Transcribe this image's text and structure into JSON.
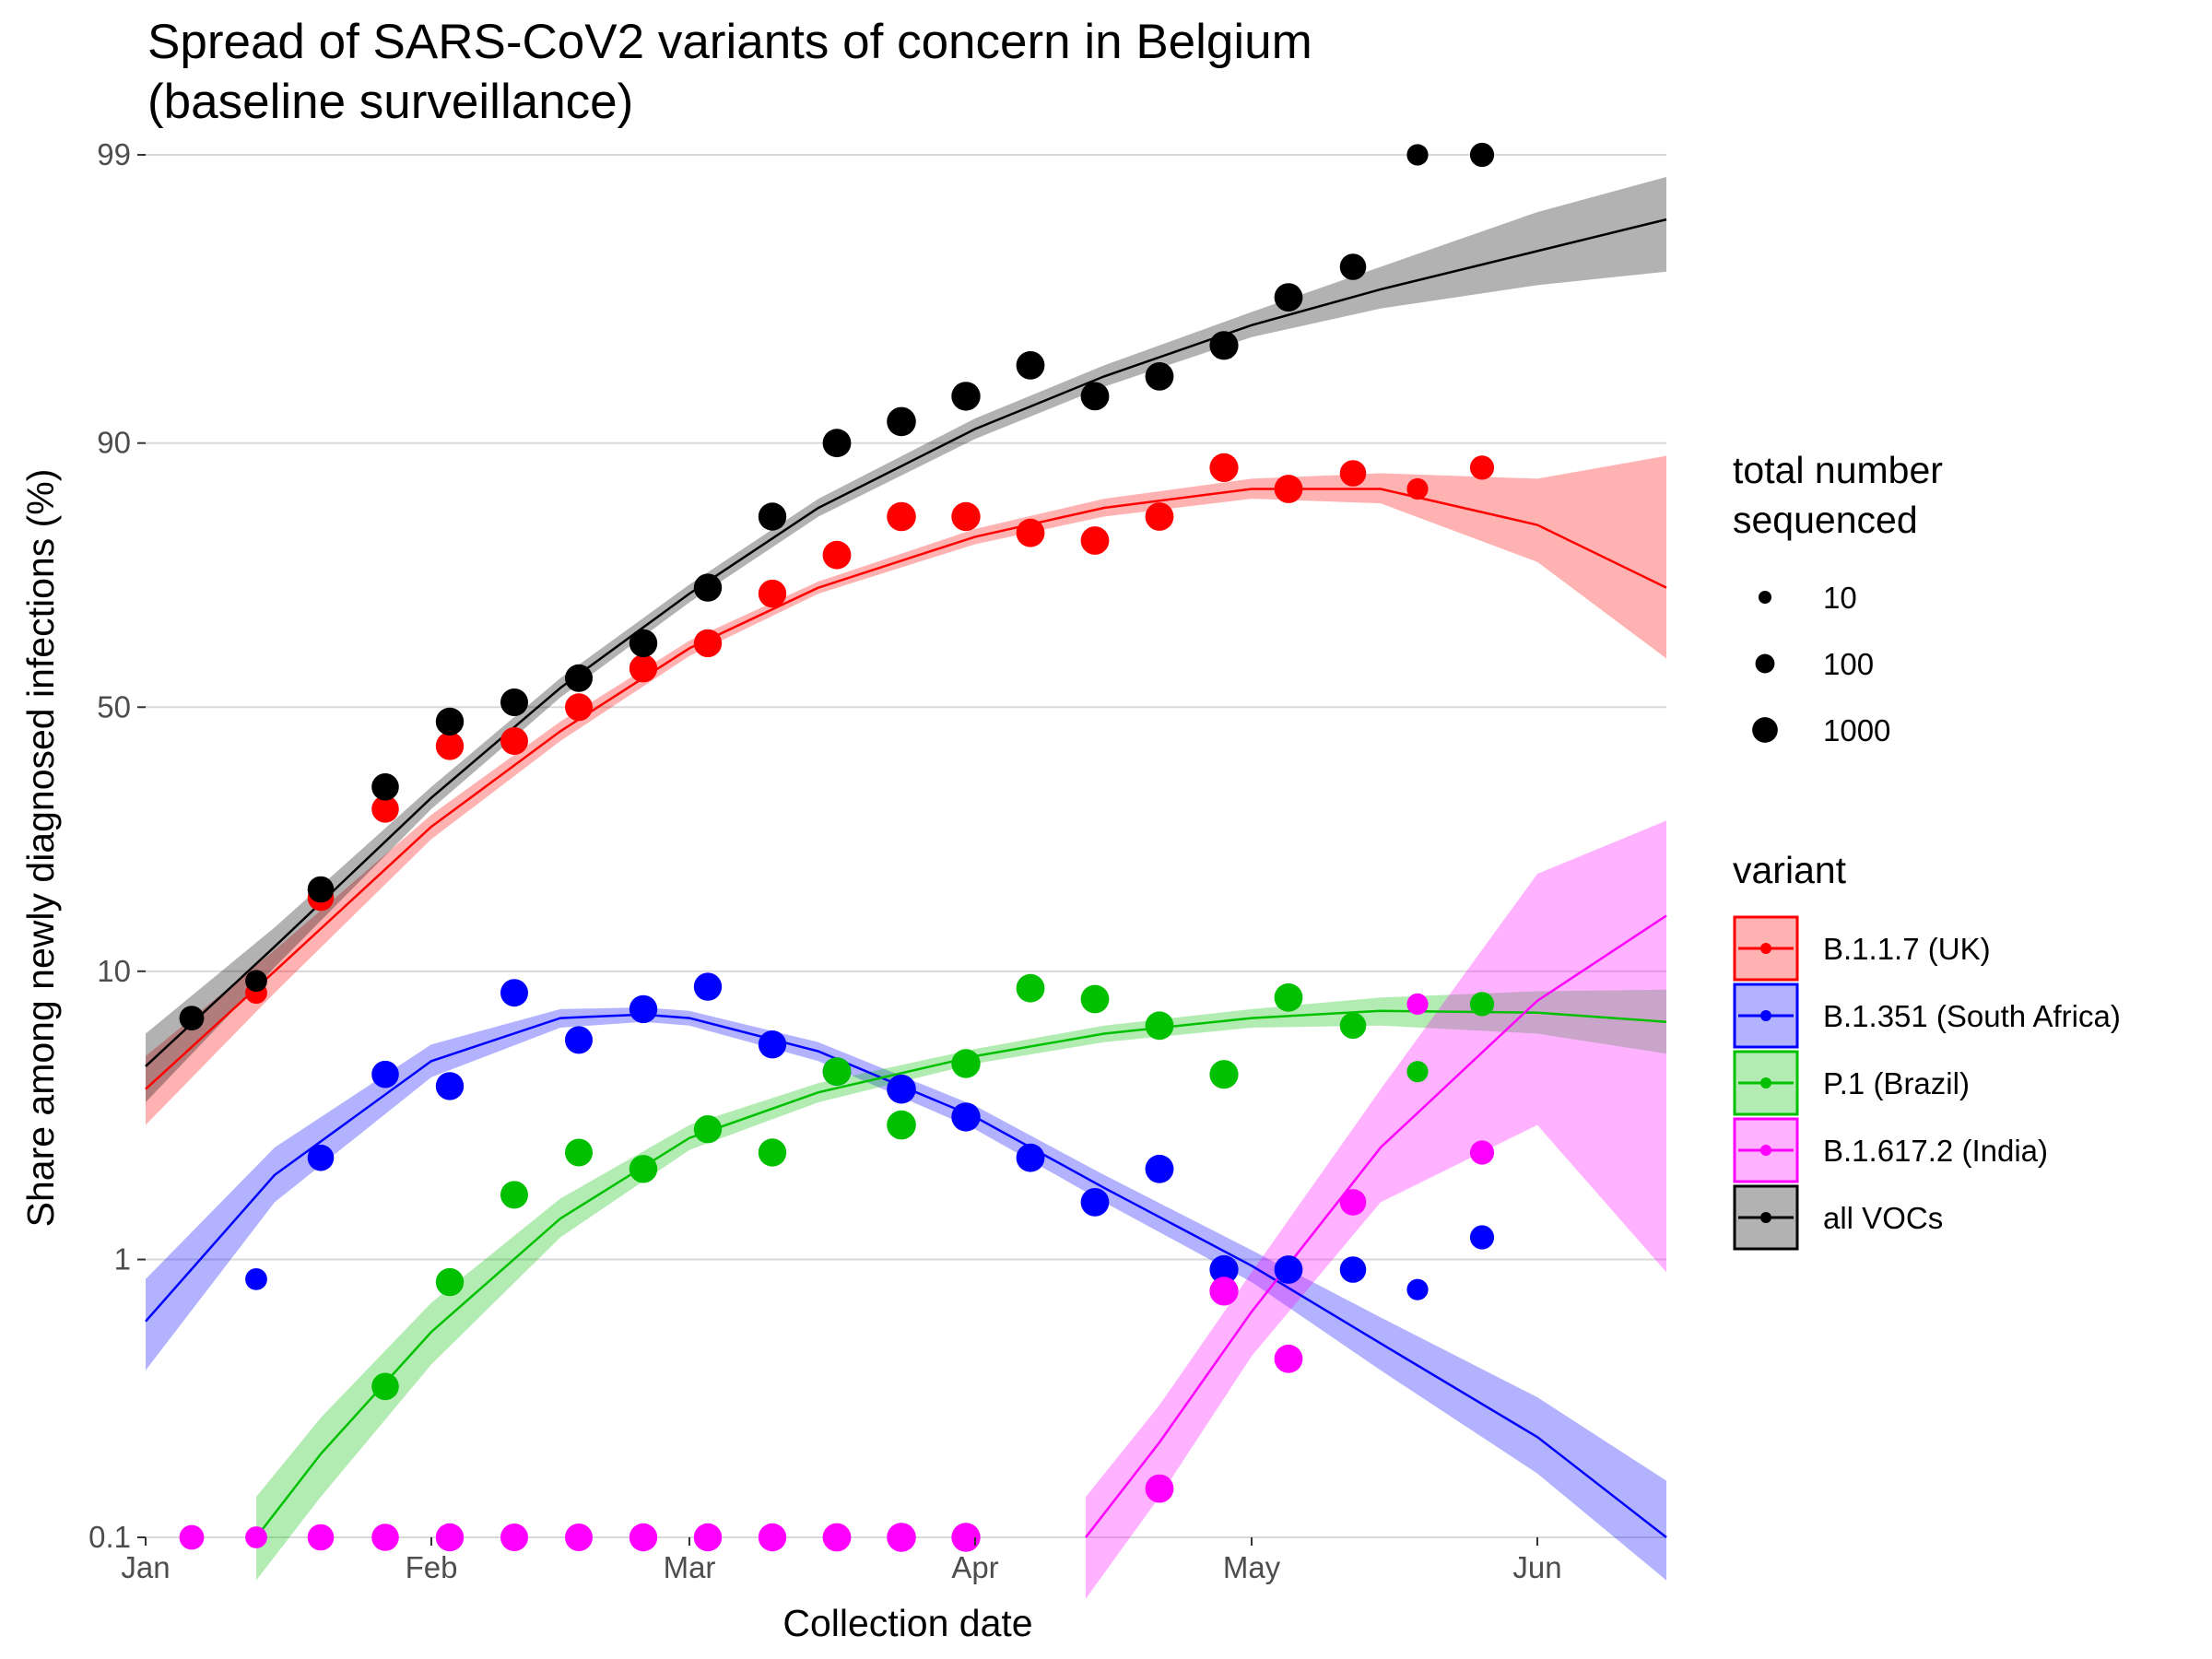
{
  "chart_data": {
    "type": "scatter",
    "title_line1": "Spread of SARS-CoV2 variants of concern in Belgium",
    "title_line2": "(baseline surveillance)",
    "xlabel": "Collection date",
    "ylabel": "Share among newly diagnosed infections (%)",
    "y_scale": "logit",
    "ylim": [
      0.1,
      99
    ],
    "y_ticks": [
      0.1,
      1,
      10,
      50,
      90,
      99
    ],
    "y_tick_labels": [
      "0.1",
      "1",
      "10",
      "50",
      "90",
      "99"
    ],
    "xlim": [
      "2021-01-01",
      "2021-06-15"
    ],
    "x_ticks": [
      "2021-01-01",
      "2021-02-01",
      "2021-03-01",
      "2021-04-01",
      "2021-05-01",
      "2021-06-01"
    ],
    "x_tick_labels": [
      "Jan",
      "Feb",
      "Mar",
      "Apr",
      "May",
      "Jun"
    ],
    "grid": true,
    "size_legend": {
      "title_line1": "total number",
      "title_line2": "sequenced",
      "entries": [
        {
          "label": "10",
          "n": 10
        },
        {
          "label": "100",
          "n": 100
        },
        {
          "label": "1000",
          "n": 1000
        }
      ]
    },
    "variant_legend_title": "variant",
    "series": [
      {
        "name": "B.1.1.7 (UK)",
        "color": "#ff0000",
        "points": [
          {
            "date": "2021-01-13",
            "y": 8.5,
            "n": 120
          },
          {
            "date": "2021-01-20",
            "y": 17,
            "n": 500
          },
          {
            "date": "2021-01-27",
            "y": 30,
            "n": 700
          },
          {
            "date": "2021-02-03",
            "y": 42,
            "n": 900
          },
          {
            "date": "2021-02-10",
            "y": 43,
            "n": 800
          },
          {
            "date": "2021-02-17",
            "y": 50,
            "n": 800
          },
          {
            "date": "2021-02-24",
            "y": 58,
            "n": 900
          },
          {
            "date": "2021-03-03",
            "y": 63,
            "n": 900
          },
          {
            "date": "2021-03-10",
            "y": 72,
            "n": 900
          },
          {
            "date": "2021-03-17",
            "y": 78,
            "n": 1000
          },
          {
            "date": "2021-03-24",
            "y": 83,
            "n": 1300
          },
          {
            "date": "2021-03-31",
            "y": 83,
            "n": 1200
          },
          {
            "date": "2021-04-07",
            "y": 81,
            "n": 1000
          },
          {
            "date": "2021-04-14",
            "y": 80,
            "n": 1000
          },
          {
            "date": "2021-04-21",
            "y": 83,
            "n": 1000
          },
          {
            "date": "2021-04-28",
            "y": 88,
            "n": 1100
          },
          {
            "date": "2021-05-05",
            "y": 86,
            "n": 1000
          },
          {
            "date": "2021-05-12",
            "y": 87.5,
            "n": 500
          },
          {
            "date": "2021-05-19",
            "y": 86,
            "n": 100
          },
          {
            "date": "2021-05-26",
            "y": 88,
            "n": 250
          }
        ],
        "fit": [
          {
            "date": "2021-01-01",
            "y": 4.0,
            "lo": 3.0,
            "hi": 5.2
          },
          {
            "date": "2021-01-15",
            "y": 10,
            "lo": 8.5,
            "hi": 11.7
          },
          {
            "date": "2021-02-01",
            "y": 27,
            "lo": 25,
            "hi": 29
          },
          {
            "date": "2021-02-15",
            "y": 45,
            "lo": 43,
            "hi": 47
          },
          {
            "date": "2021-03-01",
            "y": 62,
            "lo": 60.5,
            "hi": 63.5
          },
          {
            "date": "2021-03-15",
            "y": 73,
            "lo": 72,
            "hi": 74
          },
          {
            "date": "2021-04-01",
            "y": 80.5,
            "lo": 79.5,
            "hi": 81.5
          },
          {
            "date": "2021-04-15",
            "y": 84,
            "lo": 83,
            "hi": 85
          },
          {
            "date": "2021-05-01",
            "y": 86,
            "lo": 85,
            "hi": 87
          },
          {
            "date": "2021-05-15",
            "y": 86,
            "lo": 84.5,
            "hi": 87.5
          },
          {
            "date": "2021-06-01",
            "y": 82,
            "lo": 77,
            "hi": 87
          },
          {
            "date": "2021-06-15",
            "y": 73,
            "lo": 60,
            "hi": 89
          }
        ]
      },
      {
        "name": "B.1.351 (South Africa)",
        "color": "#0000ff",
        "points": [
          {
            "date": "2021-01-13",
            "y": 0.85,
            "n": 120
          },
          {
            "date": "2021-01-20",
            "y": 2.3,
            "n": 500
          },
          {
            "date": "2021-01-27",
            "y": 4.5,
            "n": 700
          },
          {
            "date": "2021-02-03",
            "y": 4.1,
            "n": 900
          },
          {
            "date": "2021-02-10",
            "y": 8.5,
            "n": 800
          },
          {
            "date": "2021-02-17",
            "y": 5.9,
            "n": 800
          },
          {
            "date": "2021-02-24",
            "y": 7.5,
            "n": 900
          },
          {
            "date": "2021-03-03",
            "y": 8.9,
            "n": 900
          },
          {
            "date": "2021-03-10",
            "y": 5.7,
            "n": 900
          },
          {
            "date": "2021-03-17",
            "y": 4.6,
            "n": 1000
          },
          {
            "date": "2021-03-24",
            "y": 4.0,
            "n": 1300
          },
          {
            "date": "2021-03-31",
            "y": 3.2,
            "n": 1200
          },
          {
            "date": "2021-04-07",
            "y": 2.3,
            "n": 1000
          },
          {
            "date": "2021-04-14",
            "y": 1.6,
            "n": 1000
          },
          {
            "date": "2021-04-21",
            "y": 2.1,
            "n": 1000
          },
          {
            "date": "2021-04-28",
            "y": 0.92,
            "n": 1100
          },
          {
            "date": "2021-05-05",
            "y": 0.92,
            "n": 1000
          },
          {
            "date": "2021-05-12",
            "y": 0.92,
            "n": 500
          },
          {
            "date": "2021-05-19",
            "y": 0.78,
            "n": 100
          },
          {
            "date": "2021-05-26",
            "y": 1.2,
            "n": 250
          }
        ],
        "fit": [
          {
            "date": "2021-01-01",
            "y": 0.6,
            "lo": 0.4,
            "hi": 0.85
          },
          {
            "date": "2021-01-15",
            "y": 2.0,
            "lo": 1.6,
            "hi": 2.5
          },
          {
            "date": "2021-02-01",
            "y": 5.0,
            "lo": 4.4,
            "hi": 5.7
          },
          {
            "date": "2021-02-15",
            "y": 7.0,
            "lo": 6.5,
            "hi": 7.5
          },
          {
            "date": "2021-02-24",
            "y": 7.2,
            "lo": 6.8,
            "hi": 7.6
          },
          {
            "date": "2021-03-01",
            "y": 7.0,
            "lo": 6.6,
            "hi": 7.4
          },
          {
            "date": "2021-03-15",
            "y": 5.4,
            "lo": 5.0,
            "hi": 5.8
          },
          {
            "date": "2021-04-01",
            "y": 3.2,
            "lo": 2.9,
            "hi": 3.5
          },
          {
            "date": "2021-04-15",
            "y": 1.8,
            "lo": 1.6,
            "hi": 2.0
          },
          {
            "date": "2021-05-01",
            "y": 0.95,
            "lo": 0.83,
            "hi": 1.08
          },
          {
            "date": "2021-05-15",
            "y": 0.5,
            "lo": 0.4,
            "hi": 0.62
          },
          {
            "date": "2021-06-01",
            "y": 0.23,
            "lo": 0.17,
            "hi": 0.32
          },
          {
            "date": "2021-06-15",
            "y": 0.1,
            "lo": 0.07,
            "hi": 0.16
          }
        ]
      },
      {
        "name": "P.1 (Brazil)",
        "color": "#00c000",
        "points": [
          {
            "date": "2021-01-27",
            "y": 0.35,
            "n": 700
          },
          {
            "date": "2021-02-03",
            "y": 0.83,
            "n": 900
          },
          {
            "date": "2021-02-10",
            "y": 1.7,
            "n": 800
          },
          {
            "date": "2021-02-17",
            "y": 2.4,
            "n": 800
          },
          {
            "date": "2021-02-24",
            "y": 2.1,
            "n": 900
          },
          {
            "date": "2021-03-03",
            "y": 2.9,
            "n": 900
          },
          {
            "date": "2021-03-10",
            "y": 2.4,
            "n": 900
          },
          {
            "date": "2021-03-17",
            "y": 4.6,
            "n": 1000
          },
          {
            "date": "2021-03-24",
            "y": 3.0,
            "n": 1300
          },
          {
            "date": "2021-03-31",
            "y": 4.9,
            "n": 1200
          },
          {
            "date": "2021-04-07",
            "y": 8.8,
            "n": 1000
          },
          {
            "date": "2021-04-14",
            "y": 8.1,
            "n": 1000
          },
          {
            "date": "2021-04-21",
            "y": 6.6,
            "n": 1000
          },
          {
            "date": "2021-04-28",
            "y": 4.5,
            "n": 1100
          },
          {
            "date": "2021-05-05",
            "y": 8.2,
            "n": 1000
          },
          {
            "date": "2021-05-12",
            "y": 6.6,
            "n": 500
          },
          {
            "date": "2021-05-19",
            "y": 4.6,
            "n": 100
          },
          {
            "date": "2021-05-26",
            "y": 7.8,
            "n": 250
          }
        ],
        "fit": [
          {
            "date": "2021-01-13",
            "y": 0.1,
            "lo": 0.07,
            "hi": 0.14
          },
          {
            "date": "2021-01-20",
            "y": 0.2,
            "lo": 0.14,
            "hi": 0.27
          },
          {
            "date": "2021-02-01",
            "y": 0.55,
            "lo": 0.42,
            "hi": 0.7
          },
          {
            "date": "2021-02-15",
            "y": 1.4,
            "lo": 1.2,
            "hi": 1.65
          },
          {
            "date": "2021-03-01",
            "y": 2.7,
            "lo": 2.45,
            "hi": 3.0
          },
          {
            "date": "2021-03-15",
            "y": 3.9,
            "lo": 3.6,
            "hi": 4.2
          },
          {
            "date": "2021-04-01",
            "y": 5.2,
            "lo": 4.9,
            "hi": 5.5
          },
          {
            "date": "2021-04-15",
            "y": 6.2,
            "lo": 5.8,
            "hi": 6.6
          },
          {
            "date": "2021-05-01",
            "y": 7.0,
            "lo": 6.5,
            "hi": 7.5
          },
          {
            "date": "2021-05-15",
            "y": 7.4,
            "lo": 6.6,
            "hi": 8.2
          },
          {
            "date": "2021-06-01",
            "y": 7.3,
            "lo": 6.2,
            "hi": 8.6
          },
          {
            "date": "2021-06-15",
            "y": 6.8,
            "lo": 5.3,
            "hi": 8.7
          }
        ]
      },
      {
        "name": "B.1.617.2 (India)",
        "color": "#ff00ff",
        "points": [
          {
            "date": "2021-01-06",
            "y": 0.1,
            "n": 300
          },
          {
            "date": "2021-01-13",
            "y": 0.1,
            "n": 120
          },
          {
            "date": "2021-01-20",
            "y": 0.1,
            "n": 500
          },
          {
            "date": "2021-01-27",
            "y": 0.1,
            "n": 700
          },
          {
            "date": "2021-02-03",
            "y": 0.1,
            "n": 900
          },
          {
            "date": "2021-02-10",
            "y": 0.1,
            "n": 800
          },
          {
            "date": "2021-02-17",
            "y": 0.1,
            "n": 800
          },
          {
            "date": "2021-02-24",
            "y": 0.1,
            "n": 900
          },
          {
            "date": "2021-03-03",
            "y": 0.1,
            "n": 900
          },
          {
            "date": "2021-03-10",
            "y": 0.1,
            "n": 900
          },
          {
            "date": "2021-03-17",
            "y": 0.1,
            "n": 1000
          },
          {
            "date": "2021-03-24",
            "y": 0.1,
            "n": 1300
          },
          {
            "date": "2021-03-31",
            "y": 0.1,
            "n": 1200
          },
          {
            "date": "2021-04-21",
            "y": 0.15,
            "n": 1000
          },
          {
            "date": "2021-04-28",
            "y": 0.77,
            "n": 1100
          },
          {
            "date": "2021-05-05",
            "y": 0.44,
            "n": 1000
          },
          {
            "date": "2021-05-12",
            "y": 1.6,
            "n": 500
          },
          {
            "date": "2021-05-19",
            "y": 7.8,
            "n": 100
          },
          {
            "date": "2021-05-26",
            "y": 2.4,
            "n": 250
          }
        ],
        "fit": [
          {
            "date": "2021-04-13",
            "y": 0.1,
            "lo": 0.06,
            "hi": 0.14
          },
          {
            "date": "2021-04-21",
            "y": 0.22,
            "lo": 0.14,
            "hi": 0.3
          },
          {
            "date": "2021-05-01",
            "y": 0.65,
            "lo": 0.45,
            "hi": 0.9
          },
          {
            "date": "2021-05-15",
            "y": 2.5,
            "lo": 1.6,
            "hi": 4.0
          },
          {
            "date": "2021-06-01",
            "y": 8.0,
            "lo": 3.0,
            "hi": 20
          },
          {
            "date": "2021-06-15",
            "y": 15,
            "lo": 0.9,
            "hi": 28
          }
        ]
      },
      {
        "name": "all VOCs",
        "color": "#000000",
        "points": [
          {
            "date": "2021-01-06",
            "y": 7.0,
            "n": 300
          },
          {
            "date": "2021-01-13",
            "y": 9.3,
            "n": 120
          },
          {
            "date": "2021-01-20",
            "y": 18,
            "n": 500
          },
          {
            "date": "2021-01-27",
            "y": 34,
            "n": 700
          },
          {
            "date": "2021-02-03",
            "y": 47,
            "n": 900
          },
          {
            "date": "2021-02-10",
            "y": 51,
            "n": 800
          },
          {
            "date": "2021-02-17",
            "y": 56,
            "n": 800
          },
          {
            "date": "2021-02-24",
            "y": 63,
            "n": 900
          },
          {
            "date": "2021-03-03",
            "y": 73,
            "n": 900
          },
          {
            "date": "2021-03-10",
            "y": 83,
            "n": 900
          },
          {
            "date": "2021-03-17",
            "y": 90,
            "n": 1000
          },
          {
            "date": "2021-03-24",
            "y": 91.5,
            "n": 1300
          },
          {
            "date": "2021-03-31",
            "y": 93,
            "n": 1200
          },
          {
            "date": "2021-04-07",
            "y": 94.5,
            "n": 1000
          },
          {
            "date": "2021-04-14",
            "y": 93,
            "n": 1000
          },
          {
            "date": "2021-04-21",
            "y": 94,
            "n": 1000
          },
          {
            "date": "2021-04-28",
            "y": 95.3,
            "n": 1100
          },
          {
            "date": "2021-05-05",
            "y": 96.8,
            "n": 1000
          },
          {
            "date": "2021-05-12",
            "y": 97.5,
            "n": 500
          },
          {
            "date": "2021-05-19",
            "y": 99,
            "n": 100
          },
          {
            "date": "2021-05-26",
            "y": 99,
            "n": 250
          }
        ],
        "fit": [
          {
            "date": "2021-01-01",
            "y": 4.8,
            "lo": 3.6,
            "hi": 6.2
          },
          {
            "date": "2021-01-15",
            "y": 12,
            "lo": 10.3,
            "hi": 13.8
          },
          {
            "date": "2021-02-01",
            "y": 32,
            "lo": 30,
            "hi": 34
          },
          {
            "date": "2021-02-15",
            "y": 54,
            "lo": 52,
            "hi": 56
          },
          {
            "date": "2021-03-01",
            "y": 72,
            "lo": 70.5,
            "hi": 73.5
          },
          {
            "date": "2021-03-15",
            "y": 84,
            "lo": 83,
            "hi": 85
          },
          {
            "date": "2021-04-01",
            "y": 91,
            "lo": 90.3,
            "hi": 91.7
          },
          {
            "date": "2021-04-15",
            "y": 94,
            "lo": 93.5,
            "hi": 94.5
          },
          {
            "date": "2021-05-01",
            "y": 96,
            "lo": 95.6,
            "hi": 96.4
          },
          {
            "date": "2021-05-15",
            "y": 97,
            "lo": 96.5,
            "hi": 97.5
          },
          {
            "date": "2021-06-01",
            "y": 97.8,
            "lo": 97.1,
            "hi": 98.4
          },
          {
            "date": "2021-06-15",
            "y": 98.3,
            "lo": 97.4,
            "hi": 98.8
          }
        ]
      }
    ]
  }
}
